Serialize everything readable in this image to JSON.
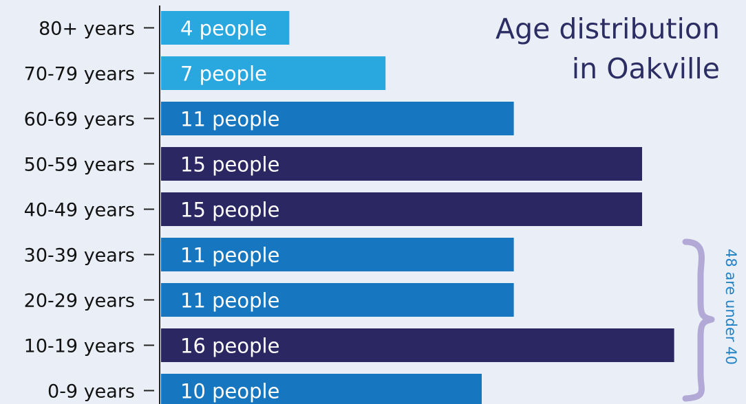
{
  "chart_data": {
    "type": "bar",
    "orientation": "horizontal",
    "title": [
      "Age distribution",
      "in Oakville"
    ],
    "categories": [
      "80+ years",
      "70-79 years",
      "60-69 years",
      "50-59 years",
      "40-49 years",
      "30-39 years",
      "20-29 years",
      "10-19 years",
      "0-9 years"
    ],
    "values": [
      4,
      7,
      11,
      15,
      15,
      11,
      11,
      16,
      10
    ],
    "data_labels": [
      "4 people",
      "7 people",
      "11 people",
      "15 people",
      "15 people",
      "11 people",
      "11 people",
      "16 people",
      "10 people"
    ],
    "bar_colors": [
      "#29a8e0",
      "#29a8e0",
      "#1676bf",
      "#2a2762",
      "#2a2762",
      "#1676bf",
      "#1676bf",
      "#2a2762",
      "#1676bf"
    ],
    "xlabel": "",
    "ylabel": "",
    "xlim": [
      0,
      16
    ],
    "grid": false,
    "legend": "none",
    "annotation": {
      "text": "48 are under 40",
      "spans_categories": [
        "30-39 years",
        "20-29 years",
        "10-19 years",
        "0-9 years"
      ]
    }
  },
  "colors": {
    "background": "#eaeff7",
    "axis": "#222222",
    "brace": "#b3a9d6",
    "annotation_text": "#2583c5",
    "title_text": "#2b2d63",
    "label_text": "#111111",
    "bar_label_text": "#ffffff"
  }
}
